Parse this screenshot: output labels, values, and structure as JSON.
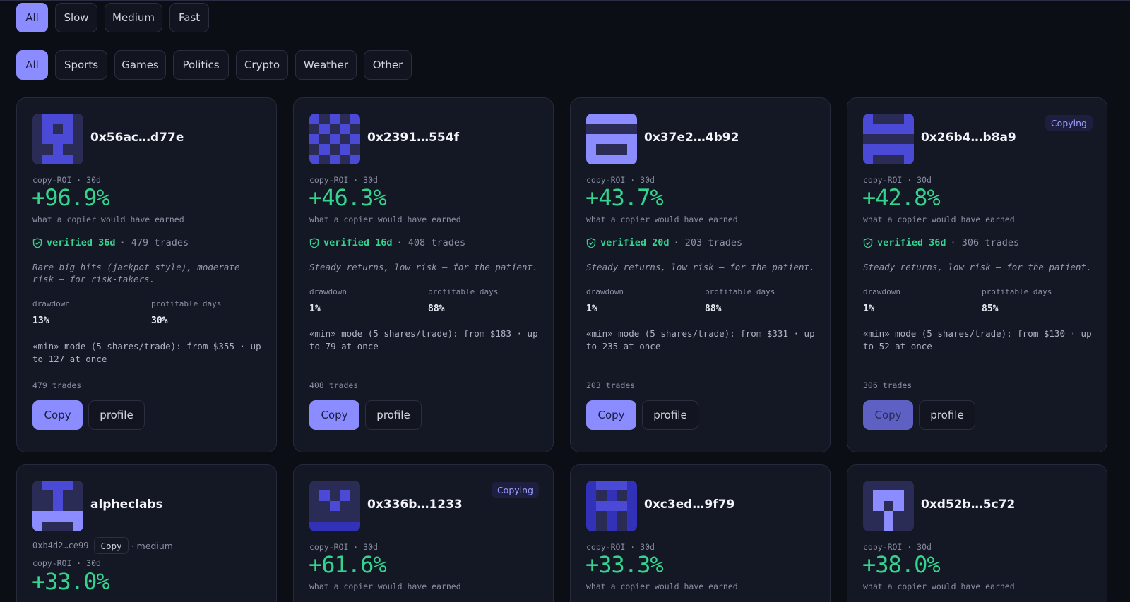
{
  "filters": {
    "speed": [
      "All",
      "Slow",
      "Medium",
      "Fast"
    ],
    "speed_active": 0,
    "category": [
      "All",
      "Sports",
      "Games",
      "Politics",
      "Crypto",
      "Weather",
      "Other"
    ],
    "category_active": 0
  },
  "colors": {
    "accent": "#8b8cff",
    "positive": "#34d48f",
    "card_bg": "#141724",
    "page_bg": "#0c0e16"
  },
  "cards": [
    {
      "name": "0x56ac…d77e",
      "copying": false,
      "roi_label": "copy-ROI · 30d",
      "roi": "+96.9%",
      "roi_sub": "what a copier would have earned",
      "verified": "verified 36d",
      "trades_text": "· 479 trades",
      "description": "Rare big hits (jackpot style), moderate risk — for risk-takers.",
      "drawdown_label": "drawdown",
      "drawdown": "13%",
      "profitable_label": "profitable days",
      "profitable": "30%",
      "min_mode": "«min» mode (5 shares/trade): from $355 · up to 127 at once",
      "trades_footer": "479 trades",
      "copy_label": "Copy",
      "profile_label": "profile",
      "avatar_icon": "identicon-icon"
    },
    {
      "name": "0x2391…554f",
      "copying": false,
      "roi_label": "copy-ROI · 30d",
      "roi": "+46.3%",
      "roi_sub": "what a copier would have earned",
      "verified": "verified 16d",
      "trades_text": "· 408 trades",
      "description": "Steady returns, low risk — for the patient.",
      "drawdown_label": "drawdown",
      "drawdown": "1%",
      "profitable_label": "profitable days",
      "profitable": "88%",
      "min_mode": "«min» mode (5 shares/trade): from $183 · up to 79 at once",
      "trades_footer": "408 trades",
      "copy_label": "Copy",
      "profile_label": "profile",
      "avatar_icon": "identicon-icon"
    },
    {
      "name": "0x37e2…4b92",
      "copying": false,
      "roi_label": "copy-ROI · 30d",
      "roi": "+43.7%",
      "roi_sub": "what a copier would have earned",
      "verified": "verified 20d",
      "trades_text": "· 203 trades",
      "description": "Steady returns, low risk — for the patient.",
      "drawdown_label": "drawdown",
      "drawdown": "1%",
      "profitable_label": "profitable days",
      "profitable": "88%",
      "min_mode": "«min» mode (5 shares/trade): from $331 · up to 235 at once",
      "trades_footer": "203 trades",
      "copy_label": "Copy",
      "profile_label": "profile",
      "avatar_icon": "identicon-icon"
    },
    {
      "name": "0x26b4…b8a9",
      "copying": true,
      "copying_label": "Copying",
      "roi_label": "copy-ROI · 30d",
      "roi": "+42.8%",
      "roi_sub": "what a copier would have earned",
      "verified": "verified 36d",
      "trades_text": "· 306 trades",
      "description": "Steady returns, low risk — for the patient.",
      "drawdown_label": "drawdown",
      "drawdown": "1%",
      "profitable_label": "profitable days",
      "profitable": "85%",
      "min_mode": "«min» mode (5 shares/trade): from $130 · up to 52 at once",
      "trades_footer": "306 trades",
      "copy_label": "Copy",
      "profile_label": "profile",
      "avatar_icon": "identicon-icon"
    }
  ],
  "cards_row2": [
    {
      "name": "alpheclabs",
      "address": "0xb4d2…ce99",
      "mini_copy": "Copy",
      "speed_tag": "· medium",
      "roi_label": "copy-ROI · 30d",
      "roi": "+33.0%"
    },
    {
      "name": "0x336b…1233",
      "copying_label": "Copying",
      "roi_label": "copy-ROI · 30d",
      "roi": "+61.6%",
      "roi_sub": "what a copier would have earned"
    },
    {
      "name": "0xc3ed…9f79",
      "roi_label": "copy-ROI · 30d",
      "roi": "+33.3%",
      "roi_sub": "what a copier would have earned"
    },
    {
      "name": "0xd52b…5c72",
      "roi_label": "copy-ROI · 30d",
      "roi": "+38.0%",
      "roi_sub": "what a copier would have earned"
    }
  ]
}
